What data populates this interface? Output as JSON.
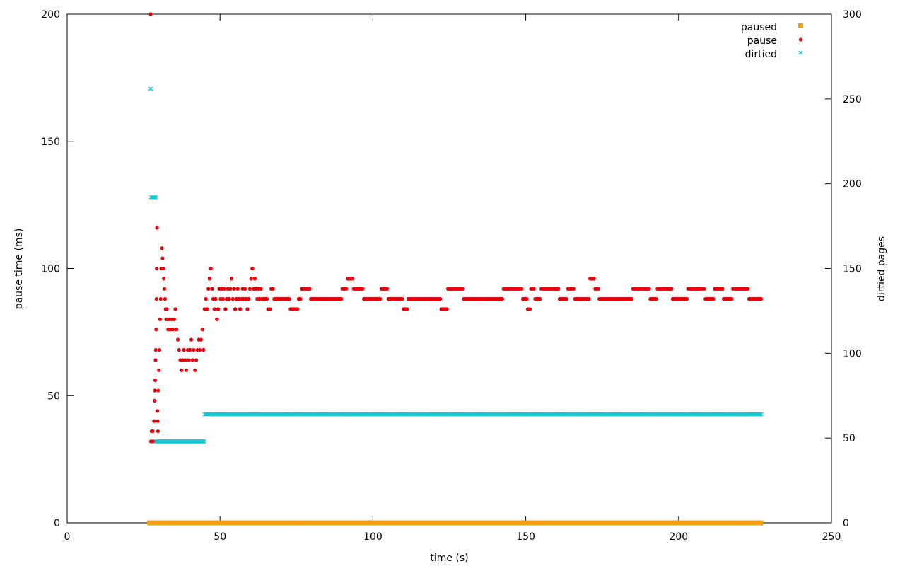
{
  "chart_data": {
    "type": "scatter",
    "title": "",
    "xlabel": "time (s)",
    "ylabel": "pause time (ms)",
    "y2label": "dirtied pages",
    "xlim": [
      0,
      250
    ],
    "ylim": [
      0,
      200
    ],
    "y2lim": [
      0,
      300
    ],
    "xticks": [
      0,
      50,
      100,
      150,
      200,
      250
    ],
    "yticks": [
      0,
      50,
      100,
      150,
      200
    ],
    "y2ticks": [
      0,
      50,
      100,
      150,
      200,
      250,
      300
    ],
    "grid": false,
    "legend_position": "top-right",
    "series": [
      {
        "name": "paused",
        "marker": "square",
        "color": "#f5a00a",
        "axis": "y",
        "x_start": 27,
        "x_end": 227,
        "x_step": 0.3,
        "value": 0
      },
      {
        "name": "pause",
        "marker": "dot",
        "color": "#e8000b",
        "axis": "y",
        "points": [
          [
            27.3,
            200
          ],
          [
            27.4,
            32
          ],
          [
            27.6,
            36
          ],
          [
            27.8,
            32
          ],
          [
            28.0,
            36
          ],
          [
            28.2,
            32
          ],
          [
            28.4,
            40
          ],
          [
            28.6,
            48
          ],
          [
            28.7,
            52
          ],
          [
            28.8,
            56
          ],
          [
            28.9,
            64
          ],
          [
            29.0,
            68
          ],
          [
            29.1,
            76
          ],
          [
            29.2,
            88
          ],
          [
            29.3,
            100
          ],
          [
            29.4,
            116
          ],
          [
            29.5,
            44
          ],
          [
            29.6,
            40
          ],
          [
            29.7,
            36
          ],
          [
            29.8,
            52
          ],
          [
            30.0,
            60
          ],
          [
            30.2,
            68
          ],
          [
            30.4,
            80
          ],
          [
            30.6,
            88
          ],
          [
            30.8,
            100
          ],
          [
            31.0,
            108
          ],
          [
            31.2,
            104
          ],
          [
            31.4,
            100
          ],
          [
            31.6,
            96
          ],
          [
            31.8,
            92
          ],
          [
            32.0,
            88
          ],
          [
            32.2,
            84
          ],
          [
            32.4,
            80
          ],
          [
            32.6,
            84
          ],
          [
            32.8,
            80
          ],
          [
            33.0,
            76
          ],
          [
            33.4,
            80
          ],
          [
            33.8,
            76
          ],
          [
            34.2,
            80
          ],
          [
            34.6,
            76
          ],
          [
            35.0,
            80
          ],
          [
            35.4,
            84
          ],
          [
            35.8,
            76
          ],
          [
            36.2,
            72
          ],
          [
            36.6,
            68
          ],
          [
            37.0,
            64
          ],
          [
            37.4,
            60
          ],
          [
            37.8,
            64
          ],
          [
            38.2,
            68
          ],
          [
            38.6,
            64
          ],
          [
            39.0,
            60
          ],
          [
            39.4,
            68
          ],
          [
            39.8,
            64
          ],
          [
            40.2,
            68
          ],
          [
            40.6,
            72
          ],
          [
            41.0,
            64
          ],
          [
            41.4,
            68
          ],
          [
            41.8,
            60
          ],
          [
            42.2,
            64
          ],
          [
            42.6,
            68
          ],
          [
            43.0,
            72
          ],
          [
            43.4,
            68
          ],
          [
            43.8,
            72
          ],
          [
            44.2,
            76
          ],
          [
            44.6,
            68
          ],
          [
            45.0,
            84
          ],
          [
            45.4,
            88
          ],
          [
            45.8,
            84
          ],
          [
            46.2,
            92
          ],
          [
            46.6,
            96
          ],
          [
            47.0,
            100
          ],
          [
            47.4,
            92
          ],
          [
            47.8,
            88
          ],
          [
            48.2,
            84
          ],
          [
            48.6,
            88
          ],
          [
            49.0,
            80
          ],
          [
            49.4,
            84
          ],
          [
            49.8,
            92
          ],
          [
            50.2,
            88
          ],
          [
            50.6,
            92
          ],
          [
            51.0,
            88
          ],
          [
            51.4,
            92
          ],
          [
            51.8,
            84
          ],
          [
            52.2,
            88
          ],
          [
            52.6,
            92
          ],
          [
            53.0,
            88
          ],
          [
            53.4,
            92
          ],
          [
            53.8,
            96
          ],
          [
            54.2,
            88
          ],
          [
            54.6,
            92
          ],
          [
            55.0,
            84
          ],
          [
            55.4,
            88
          ],
          [
            55.8,
            92
          ],
          [
            56.2,
            88
          ],
          [
            56.6,
            84
          ],
          [
            57.0,
            88
          ],
          [
            57.4,
            92
          ],
          [
            57.8,
            88
          ],
          [
            58.2,
            92
          ],
          [
            58.6,
            88
          ],
          [
            59.0,
            84
          ],
          [
            59.4,
            88
          ],
          [
            59.8,
            92
          ],
          [
            60.2,
            96
          ],
          [
            60.6,
            100
          ],
          [
            61.0,
            92
          ],
          [
            61.4,
            96
          ],
          [
            61.8,
            92
          ],
          [
            62.2,
            88
          ],
          [
            62.6,
            92
          ],
          [
            63.0,
            88
          ],
          [
            63.4,
            92
          ],
          [
            64.0,
            88
          ],
          [
            65.0,
            88
          ],
          [
            66.0,
            84
          ],
          [
            67.0,
            92
          ],
          [
            68.0,
            88
          ],
          [
            70.0,
            88
          ],
          [
            72.0,
            88
          ],
          [
            74.0,
            84
          ],
          [
            75.0,
            84
          ],
          [
            76.0,
            88
          ],
          [
            77.0,
            92
          ],
          [
            78.0,
            92
          ],
          [
            79.0,
            92
          ],
          [
            80.0,
            88
          ],
          [
            83.0,
            88
          ],
          [
            86.0,
            88
          ],
          [
            89.0,
            88
          ],
          [
            91.0,
            92
          ],
          [
            92.0,
            96
          ],
          [
            93.0,
            96
          ],
          [
            94.0,
            92
          ],
          [
            95.0,
            92
          ],
          [
            96.0,
            92
          ],
          [
            98.0,
            88
          ],
          [
            101.0,
            88
          ],
          [
            104.0,
            92
          ],
          [
            106.0,
            88
          ],
          [
            109.0,
            88
          ],
          [
            110.5,
            84
          ],
          [
            112.0,
            88
          ],
          [
            115.0,
            88
          ],
          [
            118.0,
            88
          ],
          [
            121.0,
            88
          ],
          [
            123.5,
            84
          ],
          [
            125.0,
            92
          ],
          [
            127.0,
            92
          ],
          [
            129.0,
            92
          ],
          [
            130.0,
            88
          ],
          [
            133.0,
            88
          ],
          [
            136.0,
            88
          ],
          [
            139.0,
            88
          ],
          [
            142.0,
            88
          ],
          [
            143.0,
            92
          ],
          [
            146.0,
            92
          ],
          [
            148.0,
            92
          ],
          [
            150.0,
            88
          ],
          [
            151.0,
            84
          ],
          [
            152.0,
            92
          ],
          [
            154.0,
            88
          ],
          [
            156.0,
            92
          ],
          [
            158.0,
            92
          ],
          [
            160.0,
            92
          ],
          [
            162.0,
            88
          ],
          [
            165.0,
            92
          ],
          [
            167.0,
            88
          ],
          [
            170.0,
            88
          ],
          [
            172.0,
            96
          ],
          [
            173.0,
            92
          ],
          [
            175.0,
            88
          ],
          [
            178.0,
            88
          ],
          [
            181.0,
            88
          ],
          [
            184.0,
            88
          ],
          [
            186.0,
            92
          ],
          [
            189.0,
            92
          ],
          [
            192.0,
            88
          ],
          [
            194.0,
            92
          ],
          [
            197.0,
            92
          ],
          [
            199.0,
            88
          ],
          [
            202.0,
            88
          ],
          [
            204.0,
            92
          ],
          [
            207.0,
            92
          ],
          [
            210.0,
            88
          ],
          [
            213.0,
            92
          ],
          [
            216.0,
            88
          ],
          [
            219.0,
            92
          ],
          [
            222.0,
            92
          ],
          [
            224.0,
            88
          ],
          [
            227.0,
            88
          ]
        ]
      },
      {
        "name": "dirtied",
        "marker": "cross",
        "color": "#11c9d1",
        "axis": "y2",
        "points": [
          [
            27.3,
            256
          ],
          [
            27.5,
            192
          ],
          [
            28.0,
            192
          ],
          [
            28.5,
            192
          ],
          [
            29.0,
            192
          ]
        ],
        "segments": [
          {
            "x_start": 29,
            "x_end": 45,
            "x_step": 0.35,
            "value": 48
          },
          {
            "x_start": 45,
            "x_end": 227,
            "x_step": 0.35,
            "value": 64
          }
        ]
      }
    ]
  }
}
